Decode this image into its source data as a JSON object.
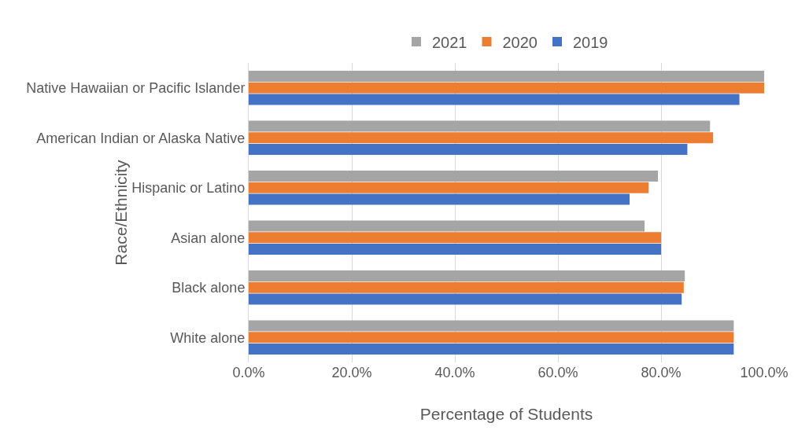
{
  "chart_data": {
    "type": "bar",
    "orientation": "horizontal",
    "xlabel": "Percentage of Students",
    "ylabel": "Race/Ethnicity",
    "categories": [
      "Native Hawaiian or Pacific Islander",
      "American Indian or Alaska Native",
      "Hispanic or Latino",
      "Asian alone",
      "Black alone",
      "White alone"
    ],
    "series": [
      {
        "name": "2021",
        "color": "#a5a5a5",
        "values": [
          100,
          89.5,
          79.4,
          76.8,
          84.6,
          94.1
        ]
      },
      {
        "name": "2020",
        "color": "#ed7d31",
        "values": [
          100,
          90.1,
          77.6,
          80,
          84.4,
          94.1
        ]
      },
      {
        "name": "2019",
        "color": "#4472c4",
        "values": [
          95.2,
          85.1,
          73.9,
          80,
          84,
          94.1
        ]
      }
    ],
    "xlim": [
      0,
      100
    ],
    "xticks": [
      {
        "value": 0,
        "label": "0.0%"
      },
      {
        "value": 20,
        "label": "20.0%"
      },
      {
        "value": 40,
        "label": "40.0%"
      },
      {
        "value": 60,
        "label": "60.0%"
      },
      {
        "value": 80,
        "label": "80.0%"
      },
      {
        "value": 100,
        "label": "100.0%"
      }
    ],
    "grid": "x",
    "legend": "top"
  }
}
